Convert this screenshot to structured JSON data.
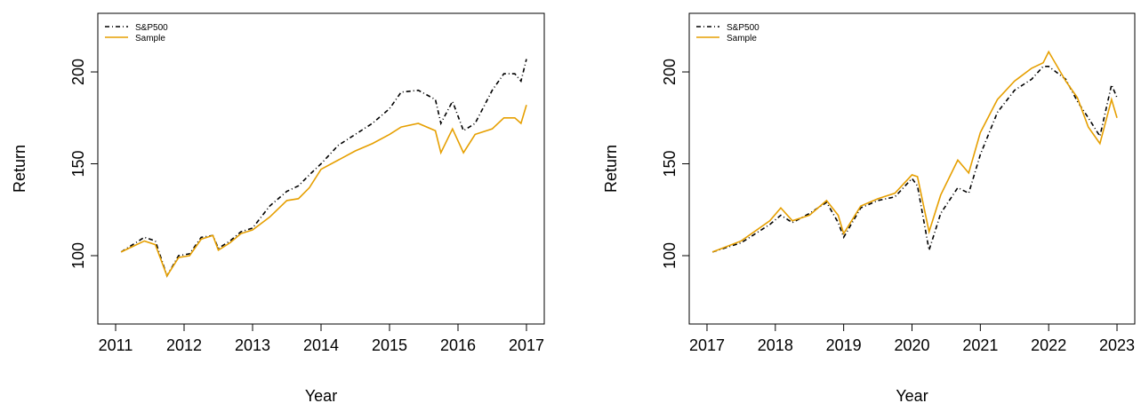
{
  "chart_data": [
    {
      "type": "line",
      "xlabel": "Year",
      "ylabel": "Return",
      "legend": "top-left",
      "xlim": [
        2010.74,
        2017.26
      ],
      "ylim": [
        62.8,
        231.9
      ],
      "xticks": [
        2011,
        2012,
        2013,
        2014,
        2015,
        2016,
        2017
      ],
      "yticks": [
        100,
        150,
        200
      ],
      "x": [
        2011.08,
        2011.25,
        2011.42,
        2011.58,
        2011.75,
        2011.92,
        2012.08,
        2012.25,
        2012.42,
        2012.5,
        2012.67,
        2012.83,
        2013.0,
        2013.25,
        2013.5,
        2013.67,
        2013.83,
        2014.0,
        2014.25,
        2014.5,
        2014.75,
        2015.0,
        2015.17,
        2015.42,
        2015.67,
        2015.75,
        2015.92,
        2016.08,
        2016.25,
        2016.5,
        2016.67,
        2016.83,
        2016.92,
        2017.0
      ],
      "series": [
        {
          "name": "S&P500",
          "color": "#000000",
          "dash": "5,3,1,3",
          "values": [
            102,
            106,
            110,
            108,
            89,
            100,
            101,
            110,
            111,
            104,
            108,
            113,
            115,
            127,
            135,
            138,
            144,
            150,
            160,
            166,
            172,
            180,
            189,
            190,
            185,
            172,
            184,
            168,
            172,
            190,
            199,
            199,
            195,
            207
          ]
        },
        {
          "name": "Sample",
          "color": "#E69F00",
          "values": [
            102,
            105,
            108,
            106,
            89,
            99,
            100,
            109,
            111,
            103,
            107,
            112,
            114,
            121,
            130,
            131,
            137,
            147,
            152,
            157,
            161,
            166,
            170,
            172,
            168,
            156,
            169,
            156,
            166,
            169,
            175,
            175,
            172,
            182
          ]
        }
      ]
    },
    {
      "type": "line",
      "xlabel": "Year",
      "ylabel": "Return",
      "legend": "top-left",
      "xlim": [
        2016.74,
        2023.26
      ],
      "ylim": [
        62.8,
        231.9
      ],
      "xticks": [
        2017,
        2018,
        2019,
        2020,
        2021,
        2022,
        2023
      ],
      "yticks": [
        100,
        150,
        200
      ],
      "x": [
        2017.08,
        2017.5,
        2017.92,
        2018.08,
        2018.25,
        2018.5,
        2018.75,
        2018.92,
        2019.0,
        2019.25,
        2019.5,
        2019.75,
        2020.0,
        2020.08,
        2020.25,
        2020.42,
        2020.67,
        2020.83,
        2021.0,
        2021.25,
        2021.5,
        2021.75,
        2021.92,
        2022.0,
        2022.25,
        2022.42,
        2022.58,
        2022.75,
        2022.92,
        2023.0
      ],
      "series": [
        {
          "name": "S&P500",
          "color": "#000000",
          "dash": "5,3,1,3",
          "values": [
            102,
            107,
            117,
            122,
            118,
            123,
            129,
            118,
            110,
            126,
            130,
            132,
            142,
            138,
            103,
            123,
            137,
            134,
            155,
            178,
            190,
            196,
            203,
            203,
            196,
            184,
            175,
            165,
            193,
            186
          ]
        },
        {
          "name": "Sample",
          "color": "#E69F00",
          "values": [
            102,
            108,
            119,
            126,
            119,
            122,
            130,
            122,
            112,
            127,
            131,
            134,
            144,
            143,
            113,
            133,
            152,
            145,
            167,
            185,
            195,
            202,
            205,
            211,
            195,
            186,
            170,
            161,
            185,
            175
          ]
        }
      ]
    }
  ]
}
